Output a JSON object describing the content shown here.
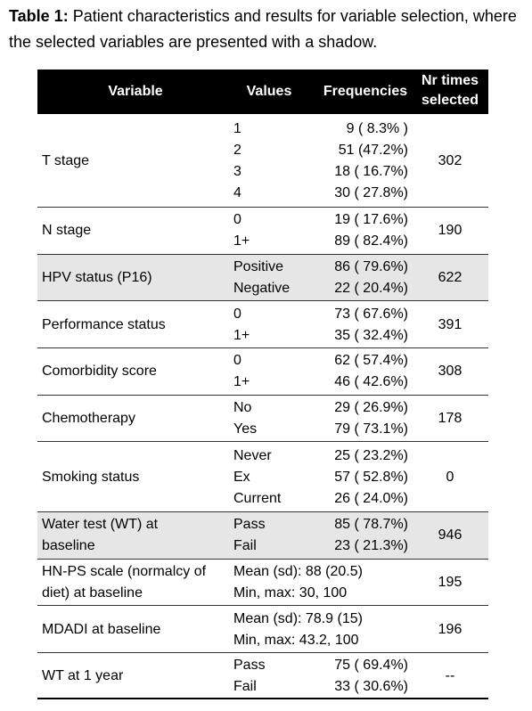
{
  "caption": {
    "label": "Table 1:",
    "text": "Patient characteristics and results for variable selection, where the selected variables are presented with a shadow."
  },
  "table": {
    "header": [
      "Variable",
      "Values",
      "Frequencies",
      "Nr times selected"
    ],
    "rows": [
      {
        "variable": [
          "T stage"
        ],
        "values": [
          "1",
          "2",
          "3",
          "4"
        ],
        "frequencies": [
          "9 ( 8.3% )",
          "51 (47.2%)",
          "18 ( 16.7%)",
          "30 ( 27.8%)"
        ],
        "selected": "302",
        "shaded": false
      },
      {
        "variable": [
          "N stage"
        ],
        "values": [
          "0",
          "1+"
        ],
        "frequencies": [
          "19 ( 17.6%)",
          "89 ( 82.4%)"
        ],
        "selected": "190",
        "shaded": false
      },
      {
        "variable": [
          "HPV status (P16)"
        ],
        "values": [
          "Positive",
          "Negative"
        ],
        "frequencies": [
          "86 ( 79.6%)",
          "22 ( 20.4%)"
        ],
        "selected": "622",
        "shaded": true
      },
      {
        "variable": [
          "Performance status"
        ],
        "values": [
          "0",
          "1+"
        ],
        "frequencies": [
          "73 ( 67.6%)",
          "35 ( 32.4%)"
        ],
        "selected": "391",
        "shaded": false
      },
      {
        "variable": [
          "Comorbidity score"
        ],
        "values": [
          "0",
          "1+"
        ],
        "frequencies": [
          "62 ( 57.4%)",
          "46 ( 42.6%)"
        ],
        "selected": "308",
        "shaded": false
      },
      {
        "variable": [
          "Chemotherapy"
        ],
        "values": [
          "No",
          "Yes"
        ],
        "frequencies": [
          "29 ( 26.9%)",
          "79 ( 73.1%)"
        ],
        "selected": "178",
        "shaded": false
      },
      {
        "variable": [
          "Smoking status"
        ],
        "values": [
          "Never",
          "Ex",
          "Current"
        ],
        "frequencies": [
          "25 ( 23.2%)",
          "57 ( 52.8%)",
          "26 ( 24.0%)"
        ],
        "selected": "0",
        "shaded": false
      },
      {
        "variable": [
          "Water test (WT) at",
          "baseline"
        ],
        "values": [
          "Pass",
          "Fail"
        ],
        "frequencies": [
          "85 ( 78.7%)",
          "23 ( 21.3%)"
        ],
        "selected": "946",
        "shaded": true
      },
      {
        "variable": [
          "HN-PS scale (normalcy of",
          "diet) at baseline"
        ],
        "values": [
          "Mean (sd): 88 (20.5)",
          "Min, max: 30, 100"
        ],
        "selected": "195",
        "shaded": false
      },
      {
        "variable": [
          "MDADI at baseline"
        ],
        "values": [
          "Mean (sd): 78.9 (15)",
          "Min, max: 43.2, 100"
        ],
        "selected": "196",
        "shaded": false
      },
      {
        "variable": [
          "WT at 1 year"
        ],
        "values": [
          "Pass",
          "Fail"
        ],
        "frequencies": [
          "75 ( 69.4%)",
          "33 ( 30.6%)"
        ],
        "selected": "--",
        "shaded": false
      }
    ]
  }
}
